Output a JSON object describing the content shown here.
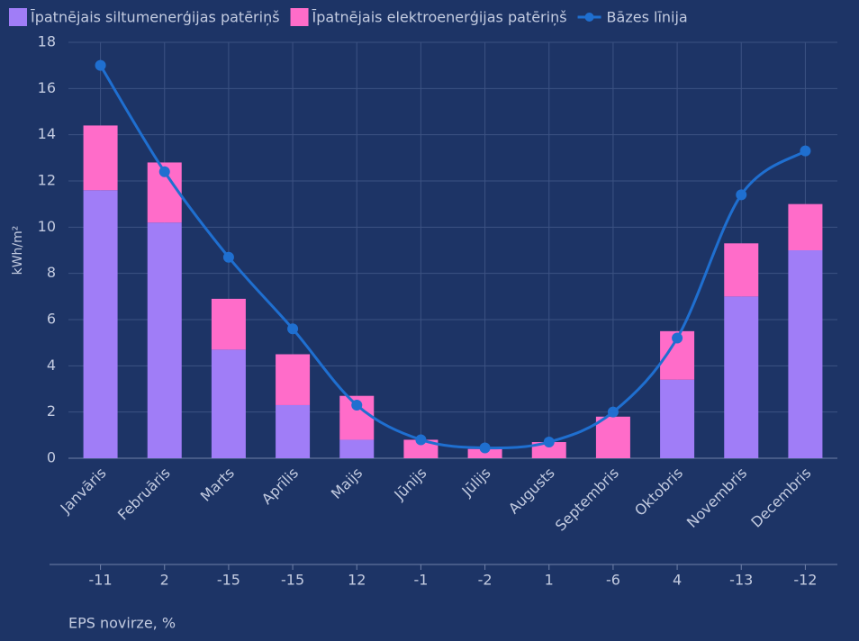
{
  "chart_data": {
    "type": "bar",
    "stacked": true,
    "y_label": "kWh/m²",
    "categories": [
      "Janvāris",
      "Februāris",
      "Marts",
      "Aprīlis",
      "Maijs",
      "Jūnijs",
      "Jūlijs",
      "Augusts",
      "Septembris",
      "Oktobris",
      "Novembris",
      "Decembris"
    ],
    "series": [
      {
        "name": "Īpatnējais siltumenerģijas patēriņš",
        "type": "bar",
        "color": "#a07df7",
        "values": [
          11.6,
          10.2,
          4.7,
          2.3,
          0.8,
          0,
          0,
          0,
          0,
          3.4,
          7.0,
          9.0
        ]
      },
      {
        "name": "Īpatnējais elektroenerģijas patēriņš",
        "type": "bar",
        "color": "#ff6cc9",
        "values": [
          2.8,
          2.6,
          2.2,
          2.2,
          1.9,
          0.8,
          0.4,
          0.7,
          1.8,
          2.1,
          2.3,
          2.0
        ]
      },
      {
        "name": "Bāzes līnija",
        "type": "line",
        "color": "#1f6fd0",
        "values": [
          17.0,
          12.4,
          8.7,
          5.6,
          2.3,
          0.8,
          0.45,
          0.7,
          2.0,
          5.2,
          11.4,
          13.3
        ]
      }
    ],
    "ylim": [
      0,
      18
    ],
    "yticks": [
      0,
      2,
      4,
      6,
      8,
      10,
      12,
      14,
      16,
      18
    ],
    "grid": true,
    "legend": "top",
    "deviation_label": "EPS novirze, %",
    "deviation": [
      "-11",
      "2",
      "-15",
      "-15",
      "12",
      "-1",
      "-2",
      "1",
      "-6",
      "4",
      "-13",
      "-12"
    ]
  }
}
